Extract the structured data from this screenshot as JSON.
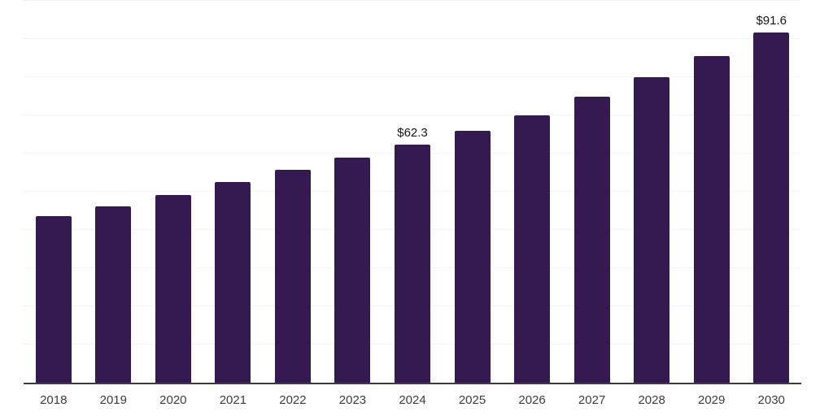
{
  "chart_data": {
    "type": "bar",
    "title": "",
    "categories": [
      "2018",
      "2019",
      "2020",
      "2021",
      "2022",
      "2023",
      "2024",
      "2025",
      "2026",
      "2027",
      "2028",
      "2029",
      "2030"
    ],
    "values": [
      43.6,
      46.2,
      49.2,
      52.5,
      55.7,
      58.9,
      62.3,
      66.0,
      70.1,
      74.9,
      79.9,
      85.5,
      91.6
    ],
    "data_labels": [
      "",
      "",
      "",
      "",
      "",
      "",
      "$62.3",
      "",
      "",
      "",
      "",
      "",
      "$91.6"
    ],
    "xlabel": "",
    "ylabel": "",
    "ylim": [
      0,
      100
    ],
    "grid_step": 10,
    "grid": "horizontal",
    "legend": "none",
    "y_axis_labels_visible": false
  },
  "colors": {
    "bar": "#341a50",
    "background": "#ffffff",
    "gridline": "#f3f3f3",
    "axis_line": "#3d3d42",
    "tick_label": "#3c3c3c",
    "data_label": "#141414"
  }
}
